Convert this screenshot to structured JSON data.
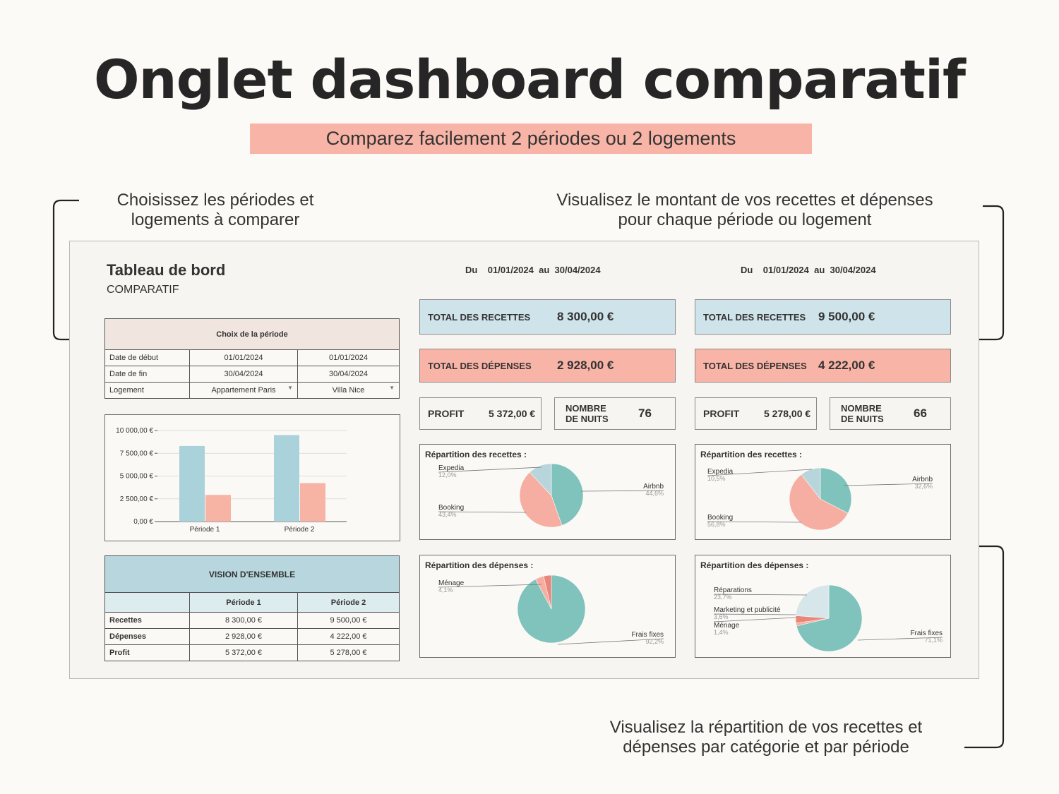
{
  "header": {
    "title": "Onglet dashboard comparatif",
    "subtitle": "Comparez facilement 2 périodes ou 2 logements"
  },
  "annotations": {
    "left_top": [
      "Choisissez les périodes et",
      "logements à comparer"
    ],
    "right_top": [
      "Visualisez le montant de vos recettes et dépenses",
      "pour chaque période ou logement"
    ],
    "right_bottom": [
      "Visualisez la répartition de vos recettes et",
      "dépenses par catégorie et par période"
    ]
  },
  "dashboard": {
    "title": "Tableau de bord",
    "subtitle": "COMPARATIF",
    "choix": {
      "header": "Choix de la période",
      "rows": [
        {
          "label": "Date de début",
          "p1": "01/01/2024",
          "p2": "01/01/2024"
        },
        {
          "label": "Date de fin",
          "p1": "30/04/2024",
          "p2": "30/04/2024"
        },
        {
          "label": "Logement",
          "p1": "Appartement Paris",
          "p2": "Villa Nice"
        }
      ]
    },
    "vision": {
      "header": "VISION D'ENSEMBLE",
      "col1": "Période 1",
      "col2": "Période 2",
      "rows": [
        {
          "label": "Recettes",
          "p1": "8 300,00 €",
          "p2": "9 500,00 €"
        },
        {
          "label": "Dépenses",
          "p1": "2 928,00 €",
          "p2": "4 222,00 €"
        },
        {
          "label": "Profit",
          "p1": "5 372,00 €",
          "p2": "5 278,00 €"
        }
      ]
    },
    "periods": [
      {
        "du": "Du",
        "start": "01/01/2024",
        "au": "au",
        "end": "30/04/2024",
        "total_recettes_label": "TOTAL DES RECETTES",
        "total_recettes": "8 300,00 €",
        "total_depenses_label": "TOTAL DES DÉPENSES",
        "total_depenses": "2 928,00 €",
        "profit_label": "PROFIT",
        "profit": "5 372,00 €",
        "nuits_label_1": "NOMBRE",
        "nuits_label_2": "DE NUITS",
        "nuits": "76",
        "rep_recettes_title": "Répartition des recettes :",
        "rep_depenses_title": "Répartition des dépenses :"
      },
      {
        "du": "Du",
        "start": "01/01/2024",
        "au": "au",
        "end": "30/04/2024",
        "total_recettes_label": "TOTAL DES RECETTES",
        "total_recettes": "9 500,00 €",
        "total_depenses_label": "TOTAL DES DÉPENSES",
        "total_depenses": "4 222,00 €",
        "profit_label": "PROFIT",
        "profit": "5 278,00 €",
        "nuits_label_1": "NOMBRE",
        "nuits_label_2": "DE NUITS",
        "nuits": "66",
        "rep_recettes_title": "Répartition des recettes :",
        "rep_depenses_title": "Répartition des dépenses :"
      }
    ]
  },
  "colors": {
    "blue": "#cfe3ea",
    "salmon": "#f8b4a6",
    "teal": "#7fc3bc",
    "pink": "#f7aea2",
    "lightblue": "#b8d5dc",
    "bar_blue": "#a9d2da",
    "bar_salmon": "#f7b3a4"
  },
  "chart_data": [
    {
      "type": "bar",
      "categories": [
        "Période 1",
        "Période 2"
      ],
      "series": [
        {
          "values": [
            8300,
            9500
          ]
        },
        {
          "values": [
            2928,
            4222
          ]
        }
      ],
      "yticks": [
        "10 000,00 €",
        "7 500,00 €",
        "5 000,00 €",
        "2 500,00 €",
        "0,00 €"
      ],
      "ylim": [
        0,
        10000
      ]
    },
    {
      "type": "pie",
      "slices": [
        {
          "label": "Airbnb",
          "pct": "44,6%",
          "value": 44.6,
          "color": "#7fc3bc"
        },
        {
          "label": "Booking",
          "pct": "43,4%",
          "value": 43.4,
          "color": "#f7aea2"
        },
        {
          "label": "Expedia",
          "pct": "12,0%",
          "value": 12.0,
          "color": "#b8d5dc"
        }
      ]
    },
    {
      "type": "pie",
      "slices": [
        {
          "label": "Airbnb",
          "pct": "32,6%",
          "value": 32.6,
          "color": "#7fc3bc"
        },
        {
          "label": "Booking",
          "pct": "56,8%",
          "value": 56.8,
          "color": "#f7aea2"
        },
        {
          "label": "Expedia",
          "pct": "10,5%",
          "value": 10.5,
          "color": "#b8d5dc"
        }
      ]
    },
    {
      "type": "pie",
      "slices": [
        {
          "label": "Frais fixes",
          "pct": "92,2%",
          "value": 92.2,
          "color": "#7fc3bc"
        },
        {
          "label": "Ménage",
          "pct": "4,1%",
          "value": 4.1,
          "color": "#f7aea2"
        },
        {
          "label": "",
          "pct": "",
          "value": 3.7,
          "color": "#e98679"
        }
      ]
    },
    {
      "type": "pie",
      "slices": [
        {
          "label": "Frais fixes",
          "pct": "71,1%",
          "value": 71.1,
          "color": "#7fc3bc"
        },
        {
          "label": "Ménage",
          "pct": "1,4%",
          "value": 1.4,
          "color": "#f7aea2"
        },
        {
          "label": "Marketing et publicité",
          "pct": "3,6%",
          "value": 3.6,
          "color": "#e98679"
        },
        {
          "label": "Réparations",
          "pct": "23,7%",
          "value": 23.7,
          "color": "#d6e6ea"
        }
      ]
    }
  ]
}
